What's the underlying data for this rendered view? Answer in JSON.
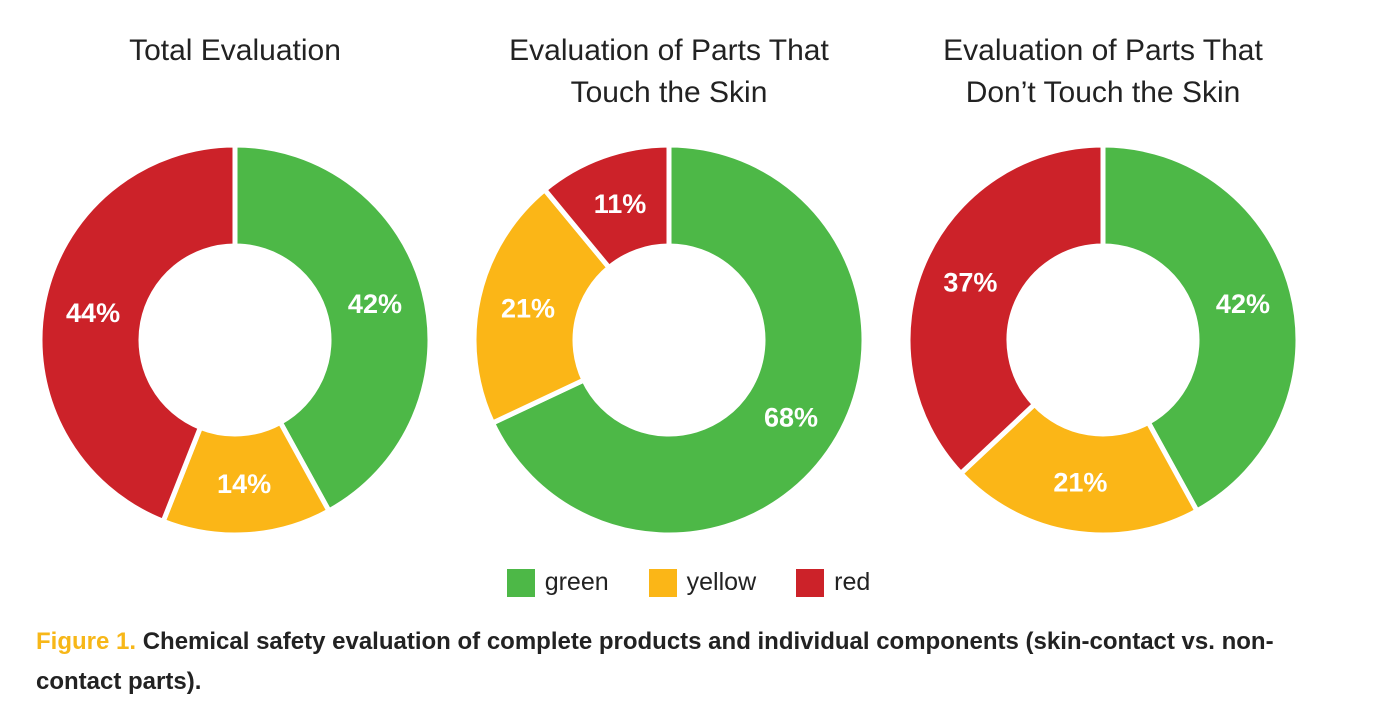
{
  "colors": {
    "green": "#4db847",
    "yellow": "#fbb617",
    "red": "#cc2229",
    "figure_label": "#f7b718"
  },
  "chart_data": [
    {
      "type": "pie",
      "title_lines": [
        "Total Evaluation"
      ],
      "slices": [
        {
          "name": "green",
          "value": 42,
          "label": "42%"
        },
        {
          "name": "yellow",
          "value": 14,
          "label": "14%"
        },
        {
          "name": "red",
          "value": 44,
          "label": "44%"
        }
      ]
    },
    {
      "type": "pie",
      "title_lines": [
        "Evaluation of Parts That",
        "Touch the Skin"
      ],
      "slices": [
        {
          "name": "green",
          "value": 68,
          "label": "68%"
        },
        {
          "name": "yellow",
          "value": 21,
          "label": "21%"
        },
        {
          "name": "red",
          "value": 11,
          "label": "11%"
        }
      ]
    },
    {
      "type": "pie",
      "title_lines": [
        "Evaluation of Parts That",
        "Don’t Touch the Skin"
      ],
      "slices": [
        {
          "name": "green",
          "value": 42,
          "label": "42%"
        },
        {
          "name": "yellow",
          "value": 21,
          "label": "21%"
        },
        {
          "name": "red",
          "value": 37,
          "label": "37%"
        }
      ]
    }
  ],
  "legend": [
    {
      "key": "green",
      "label": "green"
    },
    {
      "key": "yellow",
      "label": "yellow"
    },
    {
      "key": "red",
      "label": "red"
    }
  ],
  "caption": {
    "figure_label": "Figure 1.",
    "text": "Chemical safety evaluation of complete products and individual components (skin-contact vs. non-contact parts)."
  }
}
